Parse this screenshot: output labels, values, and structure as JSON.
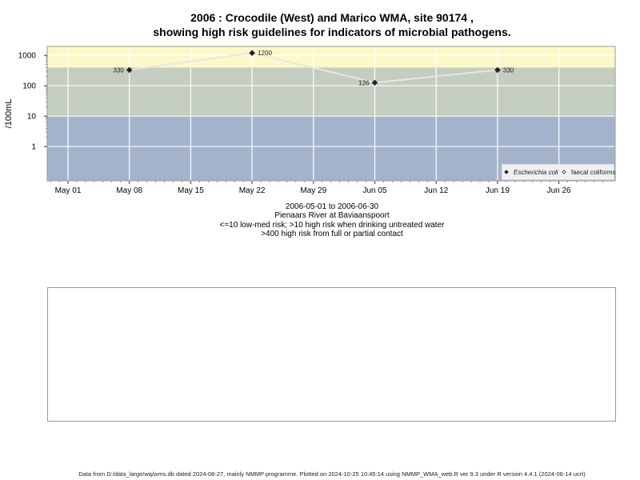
{
  "title": {
    "line1": "2006 : Crocodile (West) and Marico WMA, site 90174 ,",
    "line2": "showing high risk guidelines for indicators of microbial pathogens."
  },
  "captions": {
    "date_range": "2006-05-01 to 2006-06-30",
    "site_name": "Pienaars River at Baviaanspoort",
    "guideline_1": "<=10 low-med risk; >10 high risk when drinking untreated water",
    "guideline_2": ">400 high risk from full or partial contact"
  },
  "footer": "Data from D:/data_large/wq/wms.db dated 2024-08-27, mainly NMMP programme. Plotted on 2024-10-25 10:45:14 using NMMP_WMA_web.R ver 9.3 under R version 4.4.1 (2024-06-14 ucrt)",
  "chart_data": {
    "type": "line",
    "ylabel": "/100mL",
    "y_scale": "log",
    "yticks": [
      {
        "value": 1,
        "label": "1"
      },
      {
        "value": 10,
        "label": "10"
      },
      {
        "value": 100,
        "label": "100"
      },
      {
        "value": 1000,
        "label": "1000"
      }
    ],
    "xticks": [
      "May 01",
      "May 08",
      "May 15",
      "May 22",
      "May 29",
      "Jun 05",
      "Jun 12",
      "Jun 19",
      "Jun 26"
    ],
    "bands": [
      {
        "from": 0,
        "to": 10,
        "color": "#a3b3cb"
      },
      {
        "from": 10,
        "to": 400,
        "color": "#c3cdc0"
      },
      {
        "from": 400,
        "to": 2500,
        "color": "#fdf8c8"
      }
    ],
    "series": [
      {
        "name": "Escherichia coli",
        "marker": "filled-diamond",
        "line_color": "#e6e6e6",
        "points": [
          {
            "x": "May 08",
            "y": 330,
            "label": "330",
            "label_side": "left"
          },
          {
            "x": "May 22",
            "y": 1200,
            "label": "1200",
            "label_side": "right"
          },
          {
            "x": "Jun 05",
            "y": 126,
            "label": "126",
            "label_side": "left"
          },
          {
            "x": "Jun 19",
            "y": 330,
            "label": "330",
            "label_side": "right"
          }
        ]
      },
      {
        "name": "faecal coliforms",
        "marker": "open-diamond",
        "points": []
      }
    ]
  }
}
